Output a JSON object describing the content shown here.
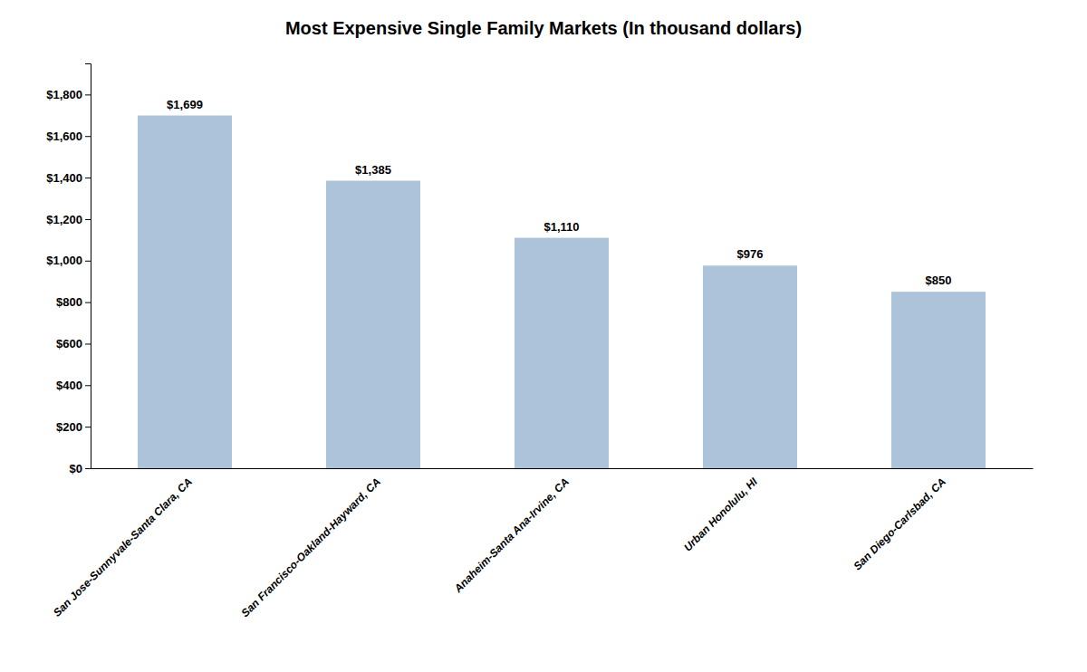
{
  "chart_data": {
    "type": "bar",
    "title": "Most Expensive Single Family Markets (In thousand dollars)",
    "categories": [
      "San Jose-Sunnyvale-Santa Clara, CA",
      "San Francisco-Oakland-Hayward, CA",
      "Anaheim-Santa Ana-Irvine, CA",
      "Urban Honolulu, HI",
      "San Diego-Carlsbad, CA"
    ],
    "values": [
      1699,
      1385,
      1110,
      976,
      850
    ],
    "value_labels": [
      "$1,699",
      "$1,385",
      "$1,110",
      "$976",
      "$850"
    ],
    "data_labels": true,
    "color": "#adc3d9",
    "ylim": [
      0,
      1950
    ],
    "yticks": [
      {
        "value": 0,
        "label": "$0"
      },
      {
        "value": 200,
        "label": "$200"
      },
      {
        "value": 400,
        "label": "$400"
      },
      {
        "value": 600,
        "label": "$600"
      },
      {
        "value": 800,
        "label": "$800"
      },
      {
        "value": 1000,
        "label": "$1,000"
      },
      {
        "value": 1200,
        "label": "$1,200"
      },
      {
        "value": 1400,
        "label": "$1,400"
      },
      {
        "value": 1600,
        "label": "$1,600"
      },
      {
        "value": 1800,
        "label": "$1,800"
      }
    ],
    "grid": false
  }
}
